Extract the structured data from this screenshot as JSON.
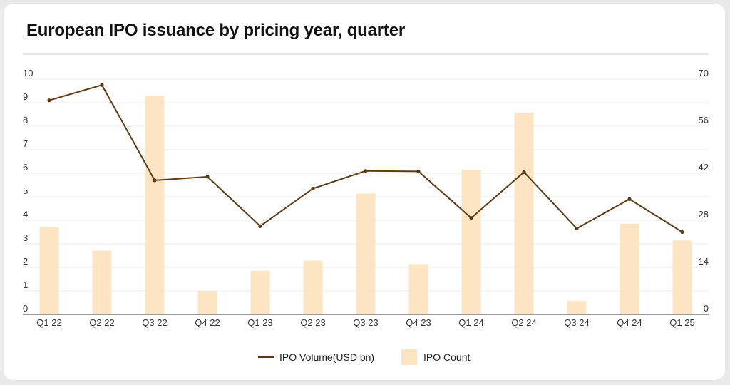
{
  "chart_data": {
    "type": "bar",
    "title": "European IPO issuance by pricing year, quarter",
    "categories": [
      "Q1 22",
      "Q2 22",
      "Q3 22",
      "Q4 22",
      "Q1 23",
      "Q2 23",
      "Q3 23",
      "Q4 23",
      "Q1 24",
      "Q2 24",
      "Q3 24",
      "Q4 24",
      "Q1 25"
    ],
    "series": [
      {
        "name": "IPO Volume(USD bn)",
        "type": "line",
        "axis": "left",
        "color": "#5c3a12",
        "values": [
          9.1,
          9.75,
          5.7,
          5.85,
          3.75,
          5.35,
          6.1,
          6.08,
          4.1,
          6.05,
          3.65,
          4.9,
          3.5
        ]
      },
      {
        "name": "IPO Count",
        "type": "bar",
        "axis": "right",
        "color": "#fde5c4",
        "values": [
          26,
          19,
          65,
          7,
          13,
          16,
          36,
          15,
          43,
          60,
          4,
          27,
          22
        ]
      }
    ],
    "y_left": {
      "min": 0,
      "max": 10,
      "ticks": [
        0,
        1,
        2,
        3,
        4,
        5,
        6,
        7,
        8,
        9,
        10
      ]
    },
    "y_right": {
      "min": 0,
      "max": 70,
      "ticks": [
        0,
        14,
        28,
        42,
        56,
        70
      ]
    },
    "grid": true,
    "legend": "bottom-center"
  }
}
